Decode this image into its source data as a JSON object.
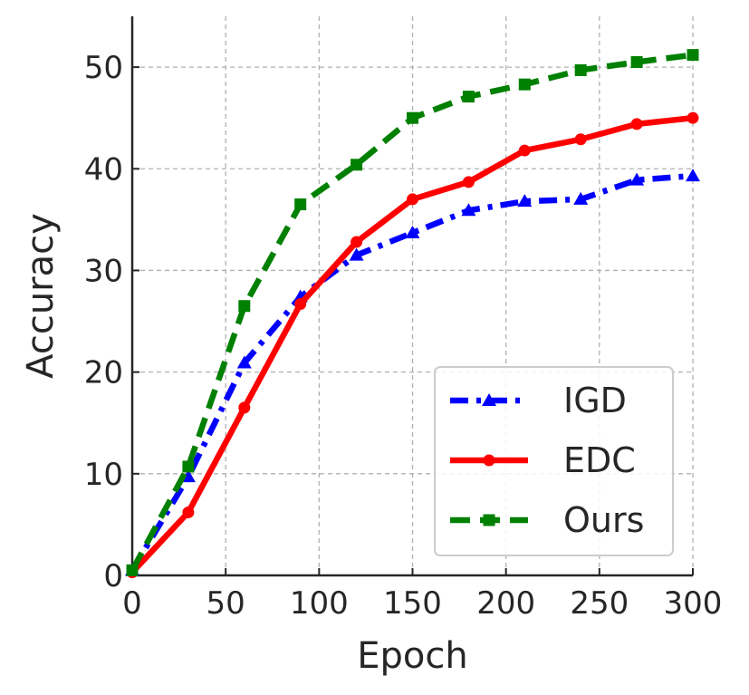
{
  "chart_data": {
    "type": "line",
    "title": "",
    "xlabel": "Epoch",
    "ylabel": "Accuracy",
    "xlim": [
      0,
      300
    ],
    "ylim": [
      0,
      55
    ],
    "xticks": [
      0,
      50,
      100,
      150,
      200,
      250,
      300
    ],
    "yticks": [
      0,
      10,
      20,
      30,
      40,
      50
    ],
    "grid": true,
    "legend_position": "bottom-right",
    "series": [
      {
        "name": "IGD",
        "color": "#0000ff",
        "line_style": "dash-dot",
        "marker": "triangle",
        "x": [
          0,
          30,
          60,
          90,
          120,
          150,
          180,
          210,
          240,
          270,
          300
        ],
        "y": [
          0.5,
          9.7,
          20.9,
          27.4,
          31.5,
          33.7,
          35.9,
          36.8,
          37.0,
          38.9,
          39.3
        ]
      },
      {
        "name": "EDC",
        "color": "#ff0000",
        "line_style": "solid",
        "marker": "circle",
        "x": [
          0,
          30,
          60,
          90,
          120,
          150,
          180,
          210,
          240,
          270,
          300
        ],
        "y": [
          0.3,
          6.2,
          16.5,
          26.7,
          32.8,
          37.0,
          38.7,
          41.8,
          42.9,
          44.4,
          45.0
        ]
      },
      {
        "name": "Ours",
        "color": "#008000",
        "line_style": "dashed",
        "marker": "square",
        "x": [
          0,
          30,
          60,
          90,
          120,
          150,
          180,
          210,
          240,
          270,
          300
        ],
        "y": [
          0.5,
          10.7,
          26.5,
          36.5,
          40.4,
          45.0,
          47.1,
          48.3,
          49.7,
          50.5,
          51.2
        ]
      }
    ]
  }
}
